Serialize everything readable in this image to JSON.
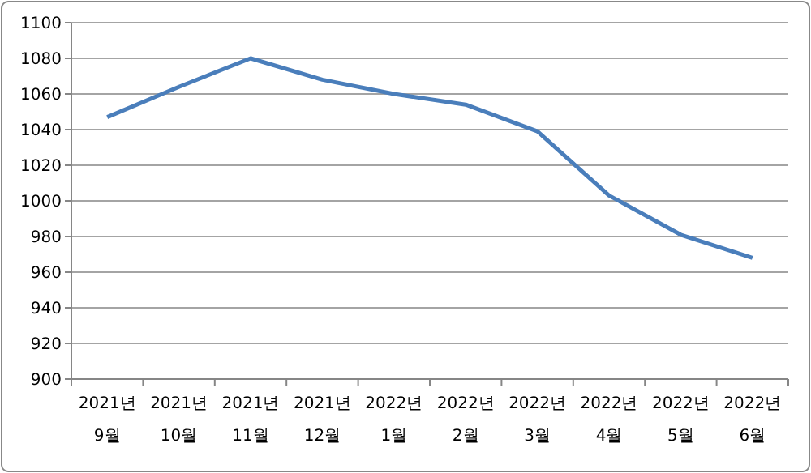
{
  "chart_data": {
    "type": "line",
    "categories": [
      "2021년 9월",
      "2021년 10월",
      "2021년 11월",
      "2021년 12월",
      "2022년 1월",
      "2022년 2월",
      "2022년 3월",
      "2022년 4월",
      "2022년 5월",
      "2022년 6월"
    ],
    "series": [
      {
        "color": "#4a7ebb",
        "values": [
          1047,
          1064,
          1080,
          1068,
          1060,
          1054,
          1039,
          1003,
          981,
          968
        ]
      }
    ],
    "ylim": [
      900,
      1100
    ],
    "yticks": [
      900,
      920,
      940,
      960,
      980,
      1000,
      1020,
      1040,
      1060,
      1080,
      1100
    ],
    "grid": "y",
    "marker": "none",
    "line_style": "solid"
  }
}
